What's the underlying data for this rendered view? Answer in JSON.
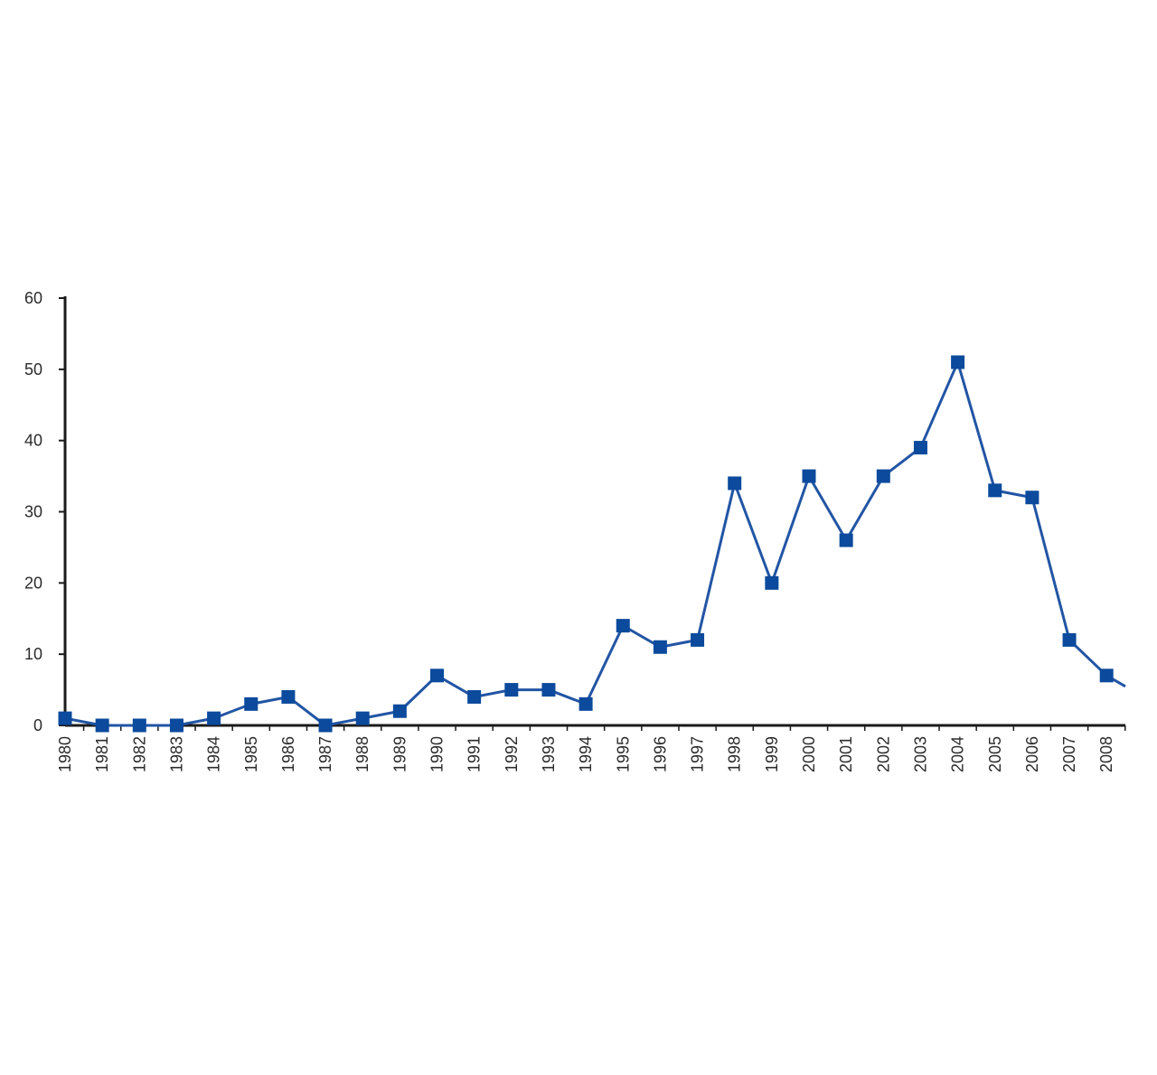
{
  "chart_data": {
    "type": "line",
    "title": "",
    "xlabel": "",
    "ylabel": "",
    "ylim": [
      0,
      60
    ],
    "yticks": [
      0,
      10,
      20,
      30,
      40,
      50,
      60
    ],
    "grid": false,
    "legend": "none",
    "categories": [
      "1980",
      "1981",
      "1982",
      "1983",
      "1984",
      "1985",
      "1986",
      "1987",
      "1988",
      "1989",
      "1990",
      "1991",
      "1992",
      "1993",
      "1994",
      "1995",
      "1996",
      "1997",
      "1998",
      "1999",
      "2000",
      "2001",
      "2002",
      "2003",
      "2004",
      "2005",
      "2006",
      "2007",
      "2008"
    ],
    "series": [
      {
        "values": [
          1,
          0,
          0,
          0,
          1,
          3,
          4,
          0,
          1,
          2,
          7,
          4,
          5,
          5,
          3,
          14,
          11,
          12,
          34,
          20,
          35,
          26,
          35,
          39,
          51,
          33,
          32,
          12,
          7
        ],
        "trailing_value": 4,
        "color": "#2255a4",
        "marker": "square",
        "marker_color": "#0b4a9c"
      }
    ],
    "axis_color": "#1a1a1a"
  }
}
